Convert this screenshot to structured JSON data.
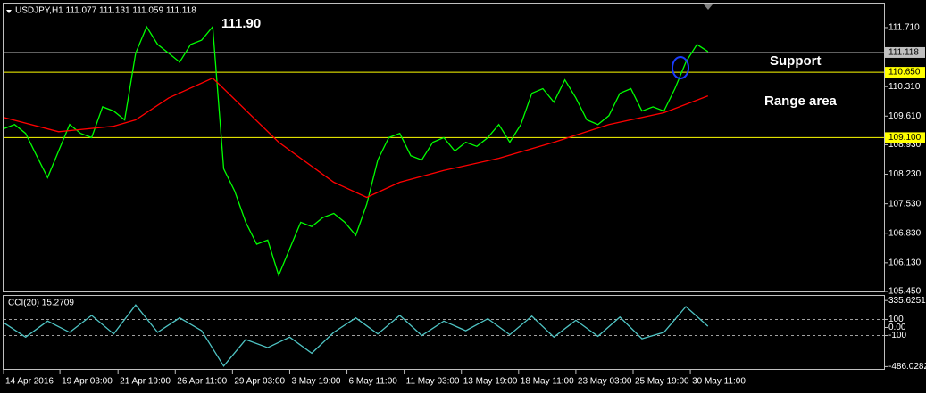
{
  "chart_data": [
    {
      "type": "line",
      "title": "USDJPY,H1  111.077 111.131 111.059 111.118",
      "x": [
        0,
        1,
        2,
        3,
        4,
        5,
        6,
        7,
        8,
        9,
        10,
        11,
        12,
        13,
        14,
        15,
        16,
        17,
        18,
        19,
        20,
        21,
        22,
        23,
        24,
        25,
        26,
        27,
        28,
        29,
        30,
        31,
        32,
        33,
        34,
        35,
        36,
        37,
        38,
        39,
        40,
        41,
        42,
        43,
        44,
        45,
        46,
        47,
        48,
        49,
        50,
        51,
        52,
        53,
        54,
        55,
        56,
        57,
        58,
        59,
        60,
        61,
        62,
        63,
        64
      ],
      "xlim": [
        0,
        80
      ],
      "xticks": [
        {
          "value": 0,
          "label": "14 Apr 2016"
        },
        {
          "value": 5.12,
          "label": "19 Apr 03:00"
        },
        {
          "value": 10.4,
          "label": "21 Apr 19:00"
        },
        {
          "value": 15.6,
          "label": "26 Apr 11:00"
        },
        {
          "value": 20.8,
          "label": "29 Apr 03:00"
        },
        {
          "value": 26.0,
          "label": "3 May 19:00"
        },
        {
          "value": 31.2,
          "label": "6 May 11:00"
        },
        {
          "value": 36.4,
          "label": "11 May 03:00"
        },
        {
          "value": 41.6,
          "label": "13 May 19:00"
        },
        {
          "value": 46.8,
          "label": "18 May 11:00"
        },
        {
          "value": 52.0,
          "label": "23 May 03:00"
        },
        {
          "value": 57.2,
          "label": "25 May 19:00"
        },
        {
          "value": 62.4,
          "label": "30 May 11:00"
        }
      ],
      "ylim": [
        105.45,
        112.28
      ],
      "yticks": [
        {
          "value": 111.71,
          "label": "111.710"
        },
        {
          "value": 110.31,
          "label": "110.310"
        },
        {
          "value": 109.61,
          "label": "109.610"
        },
        {
          "value": 108.93,
          "label": "108.930"
        },
        {
          "value": 108.23,
          "label": "108.230"
        },
        {
          "value": 107.53,
          "label": "107.530"
        },
        {
          "value": 106.83,
          "label": "106.830"
        },
        {
          "value": 106.13,
          "label": "106.130"
        },
        {
          "value": 105.45,
          "label": "105.450"
        }
      ],
      "series": [
        {
          "color": "#00ff00",
          "values": [
            109.31,
            109.41,
            109.2,
            108.67,
            108.15,
            108.78,
            109.41,
            109.2,
            109.1,
            109.83,
            109.73,
            109.52,
            111.1,
            111.73,
            111.31,
            111.1,
            110.89,
            111.31,
            111.41,
            111.73,
            108.36,
            107.83,
            107.09,
            106.57,
            106.67,
            105.83,
            106.46,
            107.09,
            106.99,
            107.2,
            107.3,
            107.09,
            106.78,
            107.52,
            108.57,
            109.1,
            109.2,
            108.67,
            108.57,
            108.99,
            109.1,
            108.78,
            108.99,
            108.89,
            109.1,
            109.41,
            108.99,
            109.41,
            110.15,
            110.26,
            109.94,
            110.47,
            110.04,
            109.52,
            109.41,
            109.62,
            110.15,
            110.26,
            109.73,
            109.83,
            109.73,
            110.26,
            110.89,
            111.31,
            111.14
          ]
        },
        {
          "color": "#ff0000",
          "x": [
            0,
            5,
            10,
            12,
            15,
            19,
            20,
            25,
            30,
            33,
            36,
            40,
            45,
            50,
            55,
            60,
            64
          ],
          "values": [
            109.58,
            109.24,
            109.37,
            109.52,
            110.04,
            110.51,
            110.26,
            108.99,
            108.04,
            107.68,
            108.04,
            108.32,
            108.61,
            108.99,
            109.41,
            109.69,
            110.09
          ]
        }
      ],
      "hlines": [
        {
          "value": 111.118,
          "label": "111.118",
          "color": "#c0c0c0"
        },
        {
          "value": 110.65,
          "label": "110.650",
          "color": "#ffff00"
        },
        {
          "value": 109.1,
          "label": "109.100",
          "color": "#ffff00"
        }
      ],
      "annotations": [
        "111.90",
        "Support",
        "Range area"
      ]
    },
    {
      "type": "line",
      "title": "CCI(20) 15.2709",
      "x": [
        0,
        2,
        4,
        6,
        8,
        10,
        12,
        14,
        16,
        18,
        20,
        22,
        24,
        26,
        28,
        30,
        32,
        34,
        36,
        38,
        40,
        42,
        44,
        46,
        48,
        50,
        52,
        54,
        56,
        58,
        60,
        62,
        64
      ],
      "xlim": [
        0,
        80
      ],
      "ylim": [
        -515,
        393
      ],
      "yticks": [
        335.6251,
        100,
        {
          "value": 0,
          "label": "0.00"
        },
        -100,
        -486.0282
      ],
      "levels": [
        100,
        -100
      ],
      "series": [
        {
          "color": "#4fc4c4",
          "values": [
            60,
            -120,
            80,
            -60,
            150,
            -80,
            280,
            -60,
            120,
            -40,
            -480,
            -150,
            -250,
            -120,
            -320,
            -60,
            120,
            -80,
            150,
            -100,
            80,
            -40,
            110,
            -90,
            140,
            -120,
            90,
            -110,
            130,
            -140,
            -60,
            260,
            15.2709
          ]
        }
      ]
    }
  ]
}
